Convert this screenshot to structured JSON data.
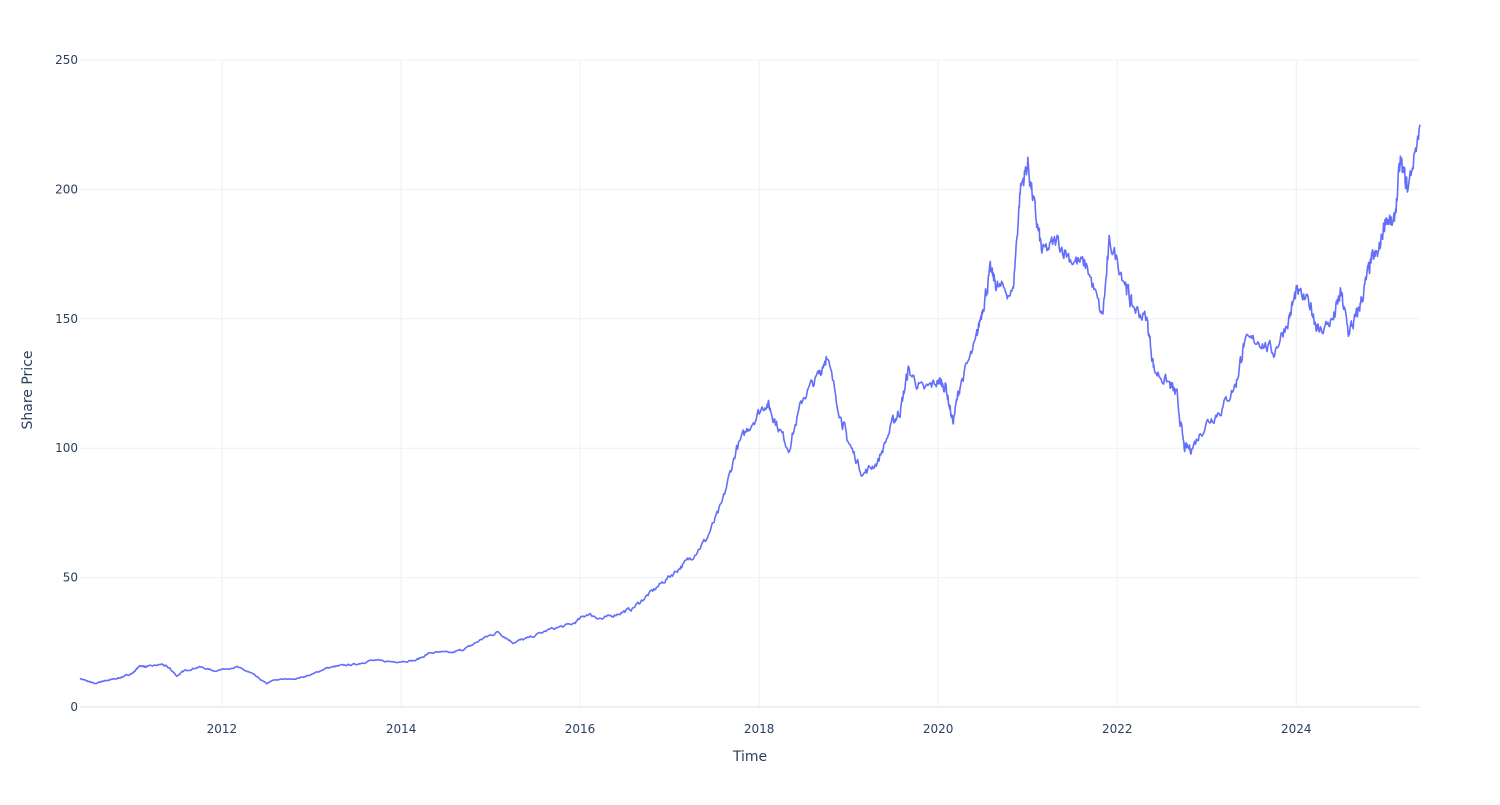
{
  "chart_data": {
    "type": "line",
    "title": "",
    "xlabel": "Time",
    "ylabel": "Share Price",
    "xlim": [
      "2010-06-01",
      "2025-05-20"
    ],
    "ylim": [
      0,
      250
    ],
    "grid": true,
    "legend": "none",
    "colors": {
      "line": "#636efa",
      "grid": "#ebf0f8",
      "text": "#2a3f5f"
    },
    "x_ticks": [
      "2012",
      "2014",
      "2016",
      "2018",
      "2020",
      "2022",
      "2024"
    ],
    "y_ticks": [
      "0",
      "50",
      "100",
      "150",
      "200",
      "250"
    ],
    "series": [
      {
        "x": [
          "2010-06-01",
          "2010-07-01",
          "2010-08-01",
          "2010-09-01",
          "2010-10-01",
          "2010-11-01",
          "2010-12-01",
          "2011-01-01",
          "2011-02-01",
          "2011-03-01",
          "2011-05-01",
          "2011-06-01",
          "2011-07-01",
          "2011-08-01",
          "2011-10-01",
          "2011-12-01",
          "2012-03-01",
          "2012-05-01",
          "2012-07-01",
          "2012-08-01",
          "2012-11-01",
          "2013-01-01",
          "2013-03-01",
          "2013-05-01",
          "2013-07-01",
          "2013-09-01",
          "2013-12-01",
          "2014-03-01",
          "2014-05-01",
          "2014-08-01",
          "2014-10-01",
          "2014-12-01",
          "2015-02-01",
          "2015-04-01",
          "2015-06-01",
          "2015-09-01",
          "2015-12-01",
          "2016-02-01",
          "2016-04-01",
          "2016-06-01",
          "2016-08-01",
          "2016-10-01",
          "2016-12-01",
          "2017-02-01",
          "2017-04-01",
          "2017-06-01",
          "2017-08-01",
          "2017-10-01",
          "2017-12-01",
          "2018-02-01",
          "2018-03-01",
          "2018-05-01",
          "2018-07-01",
          "2018-09-01",
          "2018-10-01",
          "2018-12-01",
          "2019-01-01",
          "2019-03-01",
          "2019-05-01",
          "2019-07-01",
          "2019-08-01",
          "2019-09-01",
          "2019-11-01",
          "2020-01-01",
          "2020-02-01",
          "2020-03-01",
          "2020-04-01",
          "2020-06-01",
          "2020-07-01",
          "2020-08-01",
          "2020-09-01",
          "2020-11-01",
          "2020-12-01",
          "2021-01-01",
          "2021-02-01",
          "2021-03-01",
          "2021-05-01",
          "2021-07-01",
          "2021-09-01",
          "2021-11-01",
          "2021-12-01",
          "2022-02-01",
          "2022-03-01",
          "2022-05-01",
          "2022-06-01",
          "2022-08-01",
          "2022-09-01",
          "2022-10-01",
          "2022-11-01",
          "2023-01-01",
          "2023-03-01",
          "2023-05-01",
          "2023-06-01",
          "2023-08-01",
          "2023-10-01",
          "2023-12-01",
          "2024-01-01",
          "2024-03-01",
          "2024-04-01",
          "2024-06-01",
          "2024-07-01",
          "2024-08-01",
          "2024-09-01",
          "2024-10-01",
          "2024-11-01",
          "2024-12-01",
          "2025-01-01",
          "2025-02-01",
          "2025-03-01",
          "2025-04-01",
          "2025-05-20"
        ],
        "y": [
          11,
          10,
          9,
          10,
          10.5,
          11,
          12,
          13,
          16,
          15.5,
          16.5,
          15,
          12,
          14,
          15.5,
          14,
          15.5,
          13,
          9,
          10.5,
          11,
          12.5,
          15,
          16,
          16.5,
          18,
          17.5,
          18,
          21,
          21,
          23,
          26.5,
          29,
          25,
          26.5,
          30,
          32,
          36,
          34,
          36,
          38,
          43,
          48,
          53,
          58,
          65,
          78,
          100,
          110,
          118,
          112,
          100,
          120,
          128,
          136,
          112,
          102,
          90,
          95,
          110,
          115,
          130,
          122,
          126,
          124,
          110,
          125,
          140,
          155,
          168,
          162,
          160,
          200,
          210,
          190,
          175,
          180,
          173,
          170,
          150,
          180,
          165,
          155,
          150,
          130,
          125,
          120,
          100,
          100,
          110,
          115,
          125,
          140,
          142,
          137,
          150,
          160,
          155,
          145,
          150,
          160,
          145,
          150,
          160,
          172,
          175,
          190,
          185,
          210,
          200,
          225
        ]
      }
    ]
  }
}
